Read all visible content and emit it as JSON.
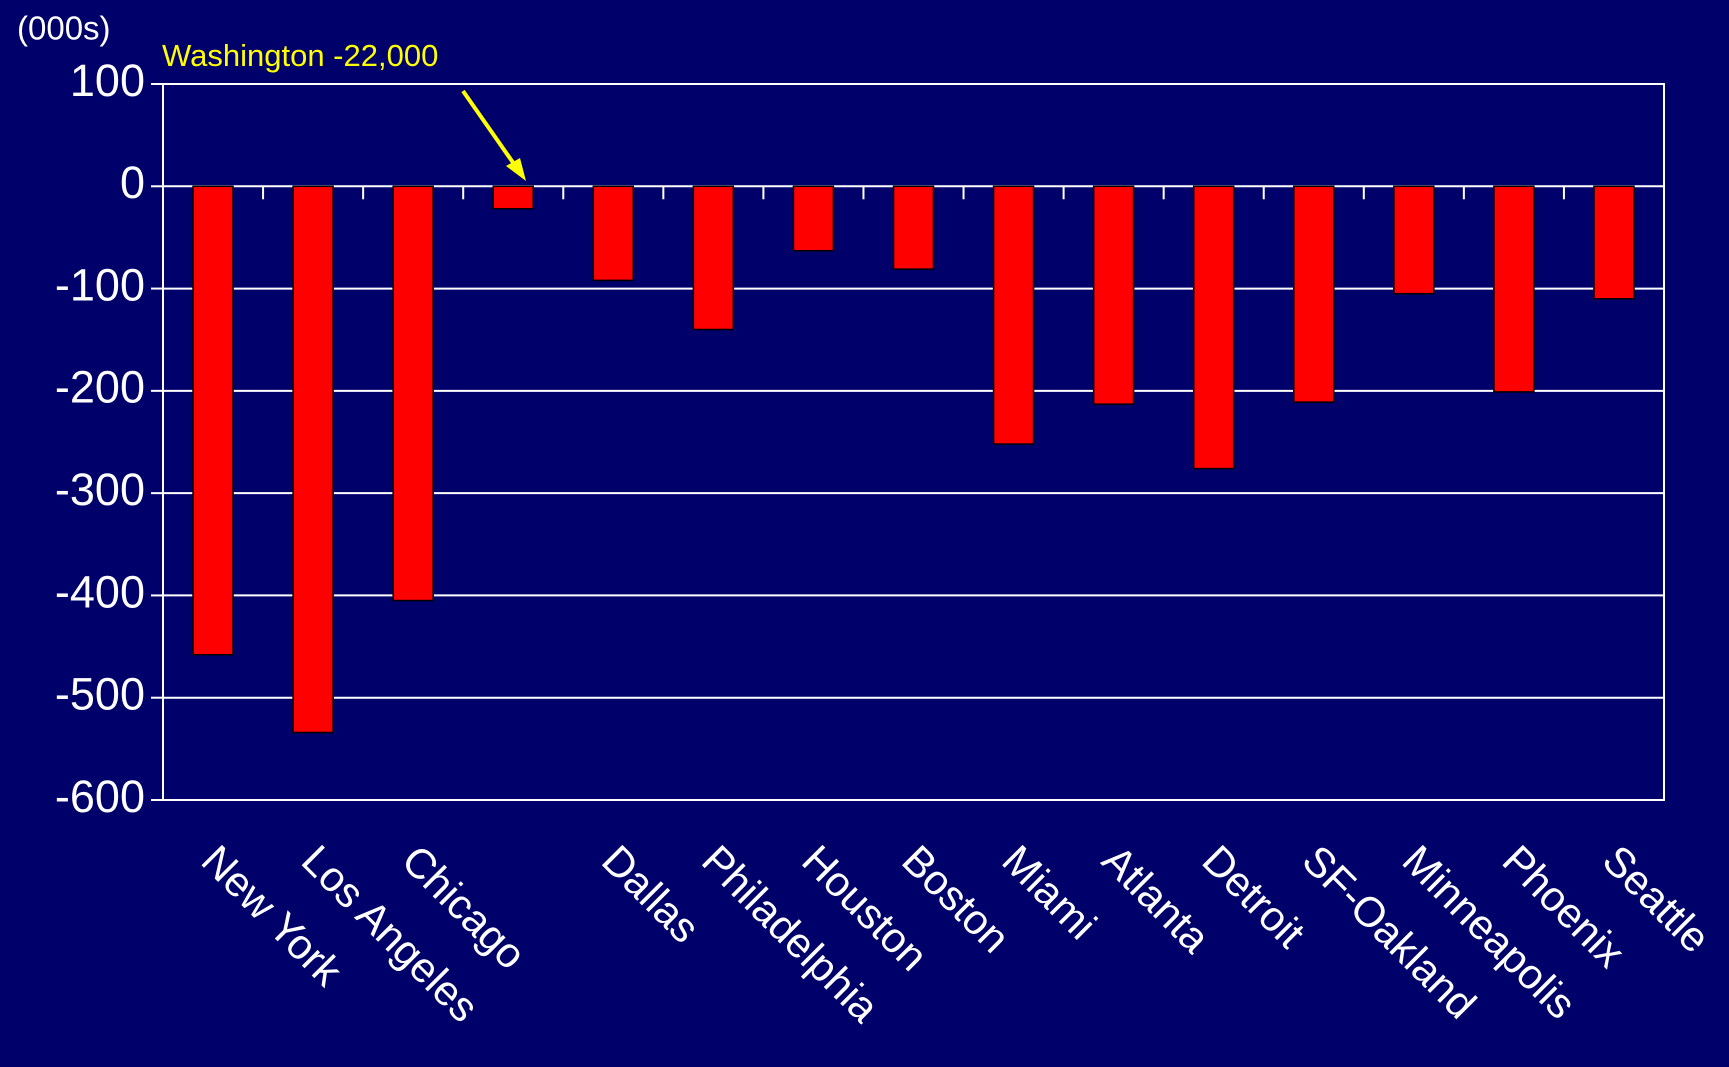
{
  "chart_data": {
    "type": "bar",
    "y_axis_label": "(000s)",
    "annotation": "Washington -22,000",
    "categories": [
      "New York",
      "Los Angeles",
      "Chicago",
      null,
      "Dallas",
      "Philadelphia",
      "Houston",
      "Boston",
      "Miami",
      "Atlanta",
      "Detroit",
      "SF-Oakland",
      "Minneapolis",
      "Phoenix",
      "Seattle"
    ],
    "values": [
      -458,
      -534,
      -405,
      -22,
      -92,
      -140,
      -63,
      -81,
      -252,
      -213,
      -276,
      -211,
      -105,
      -201,
      -110
    ],
    "color": "#ff0000",
    "ylim": [
      -600,
      100
    ],
    "yticks": [
      -600,
      -500,
      -400,
      -300,
      -200,
      -100,
      0,
      100
    ],
    "grid": true
  }
}
